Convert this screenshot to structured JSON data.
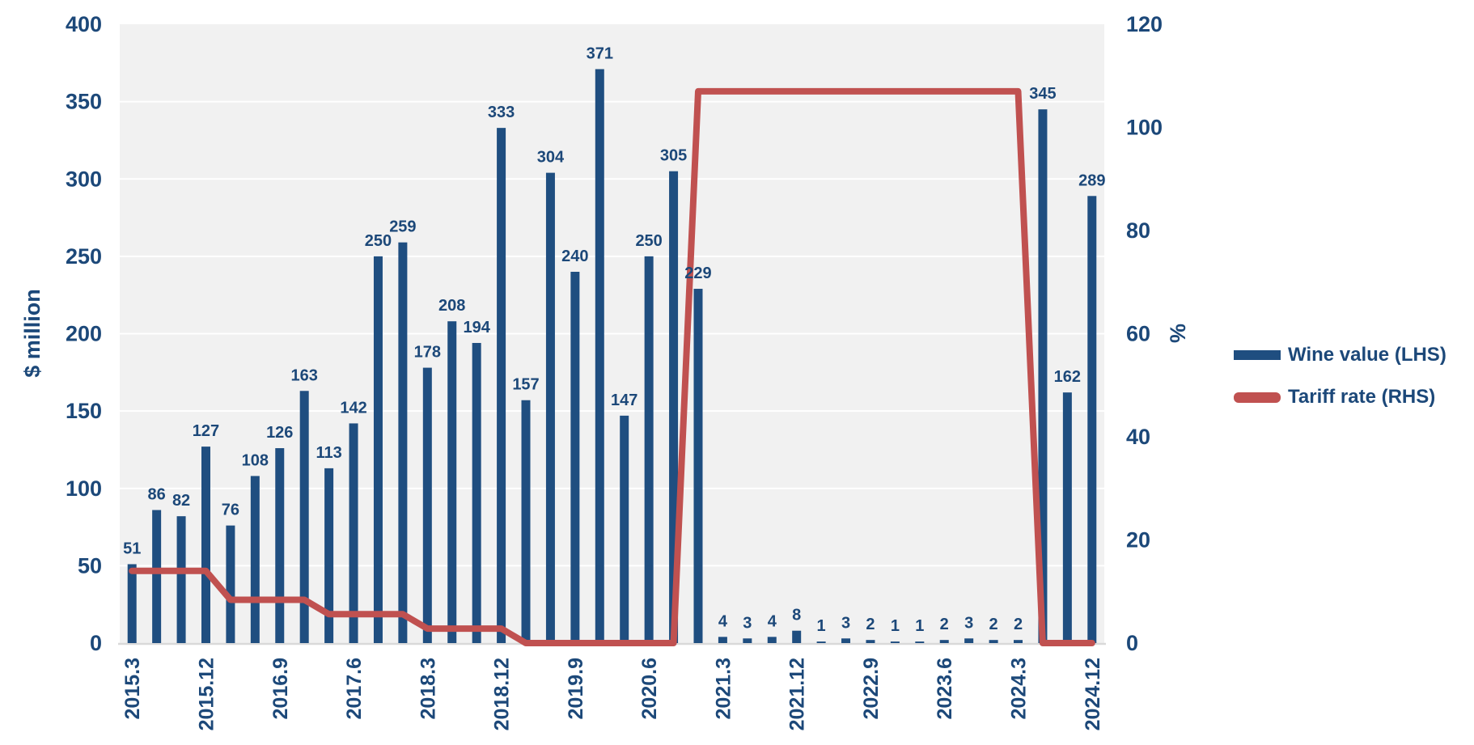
{
  "chart_data": {
    "type": "bar",
    "subtype": "combo-bar-line-dual-axis",
    "categories": [
      "2015.3",
      "2015.6",
      "2015.9",
      "2015.12",
      "2016.3",
      "2016.6",
      "2016.9",
      "2016.12",
      "2017.3",
      "2017.6",
      "2017.9",
      "2017.12",
      "2018.3",
      "2018.6",
      "2018.9",
      "2018.12",
      "2019.3",
      "2019.6",
      "2019.9",
      "2019.12",
      "2020.3",
      "2020.6",
      "2020.9",
      "2020.12",
      "2021.3",
      "2021.6",
      "2021.9",
      "2021.12",
      "2022.3",
      "2022.6",
      "2022.9",
      "2022.12",
      "2023.3",
      "2023.6",
      "2023.9",
      "2023.12",
      "2024.3",
      "2024.6",
      "2024.9",
      "2024.12"
    ],
    "x_tick_labels": [
      "2015.3",
      "2015.12",
      "2016.9",
      "2017.6",
      "2018.3",
      "2018.12",
      "2019.9",
      "2020.6",
      "2021.3",
      "2021.12",
      "2022.9",
      "2023.6",
      "2024.3",
      "2024.12"
    ],
    "x_tick_every": 3,
    "series": [
      {
        "name": "Wine value (LHS)",
        "type": "bar",
        "axis": "left",
        "color": "#1f4e80",
        "values": [
          51,
          86,
          82,
          127,
          76,
          108,
          126,
          163,
          113,
          142,
          250,
          259,
          178,
          208,
          194,
          333,
          157,
          304,
          240,
          371,
          147,
          250,
          305,
          229,
          4,
          3,
          4,
          8,
          1,
          3,
          2,
          1,
          1,
          2,
          3,
          2,
          2,
          345,
          162,
          289
        ]
      },
      {
        "name": "Tariff rate (RHS)",
        "type": "line",
        "axis": "right",
        "color": "#c05150",
        "values": [
          14,
          14,
          14,
          14,
          8.4,
          8.4,
          8.4,
          8.4,
          5.6,
          5.6,
          5.6,
          5.6,
          2.8,
          2.8,
          2.8,
          2.8,
          0,
          0,
          0,
          0,
          0,
          0,
          0,
          107,
          107,
          107,
          107,
          107,
          107,
          107,
          107,
          107,
          107,
          107,
          107,
          107,
          107,
          0,
          0,
          0
        ]
      }
    ],
    "left_axis": {
      "title": "$ million",
      "min": 0,
      "max": 400,
      "tick_step": 50
    },
    "right_axis": {
      "title": "%",
      "min": 0,
      "max": 120,
      "tick_step": 20
    },
    "legend_position": "right",
    "grid": "horizontal-white-on-gray",
    "bar_data_labels_visible": true
  },
  "colors": {
    "text_navy": "#1c4879",
    "bar_blue": "#1f4e80",
    "line_red": "#c05150",
    "plot_background": "#f1f1f1",
    "gridline": "#ffffff",
    "axis_line": "#d9d9d9",
    "page_background": "#ffffff"
  }
}
